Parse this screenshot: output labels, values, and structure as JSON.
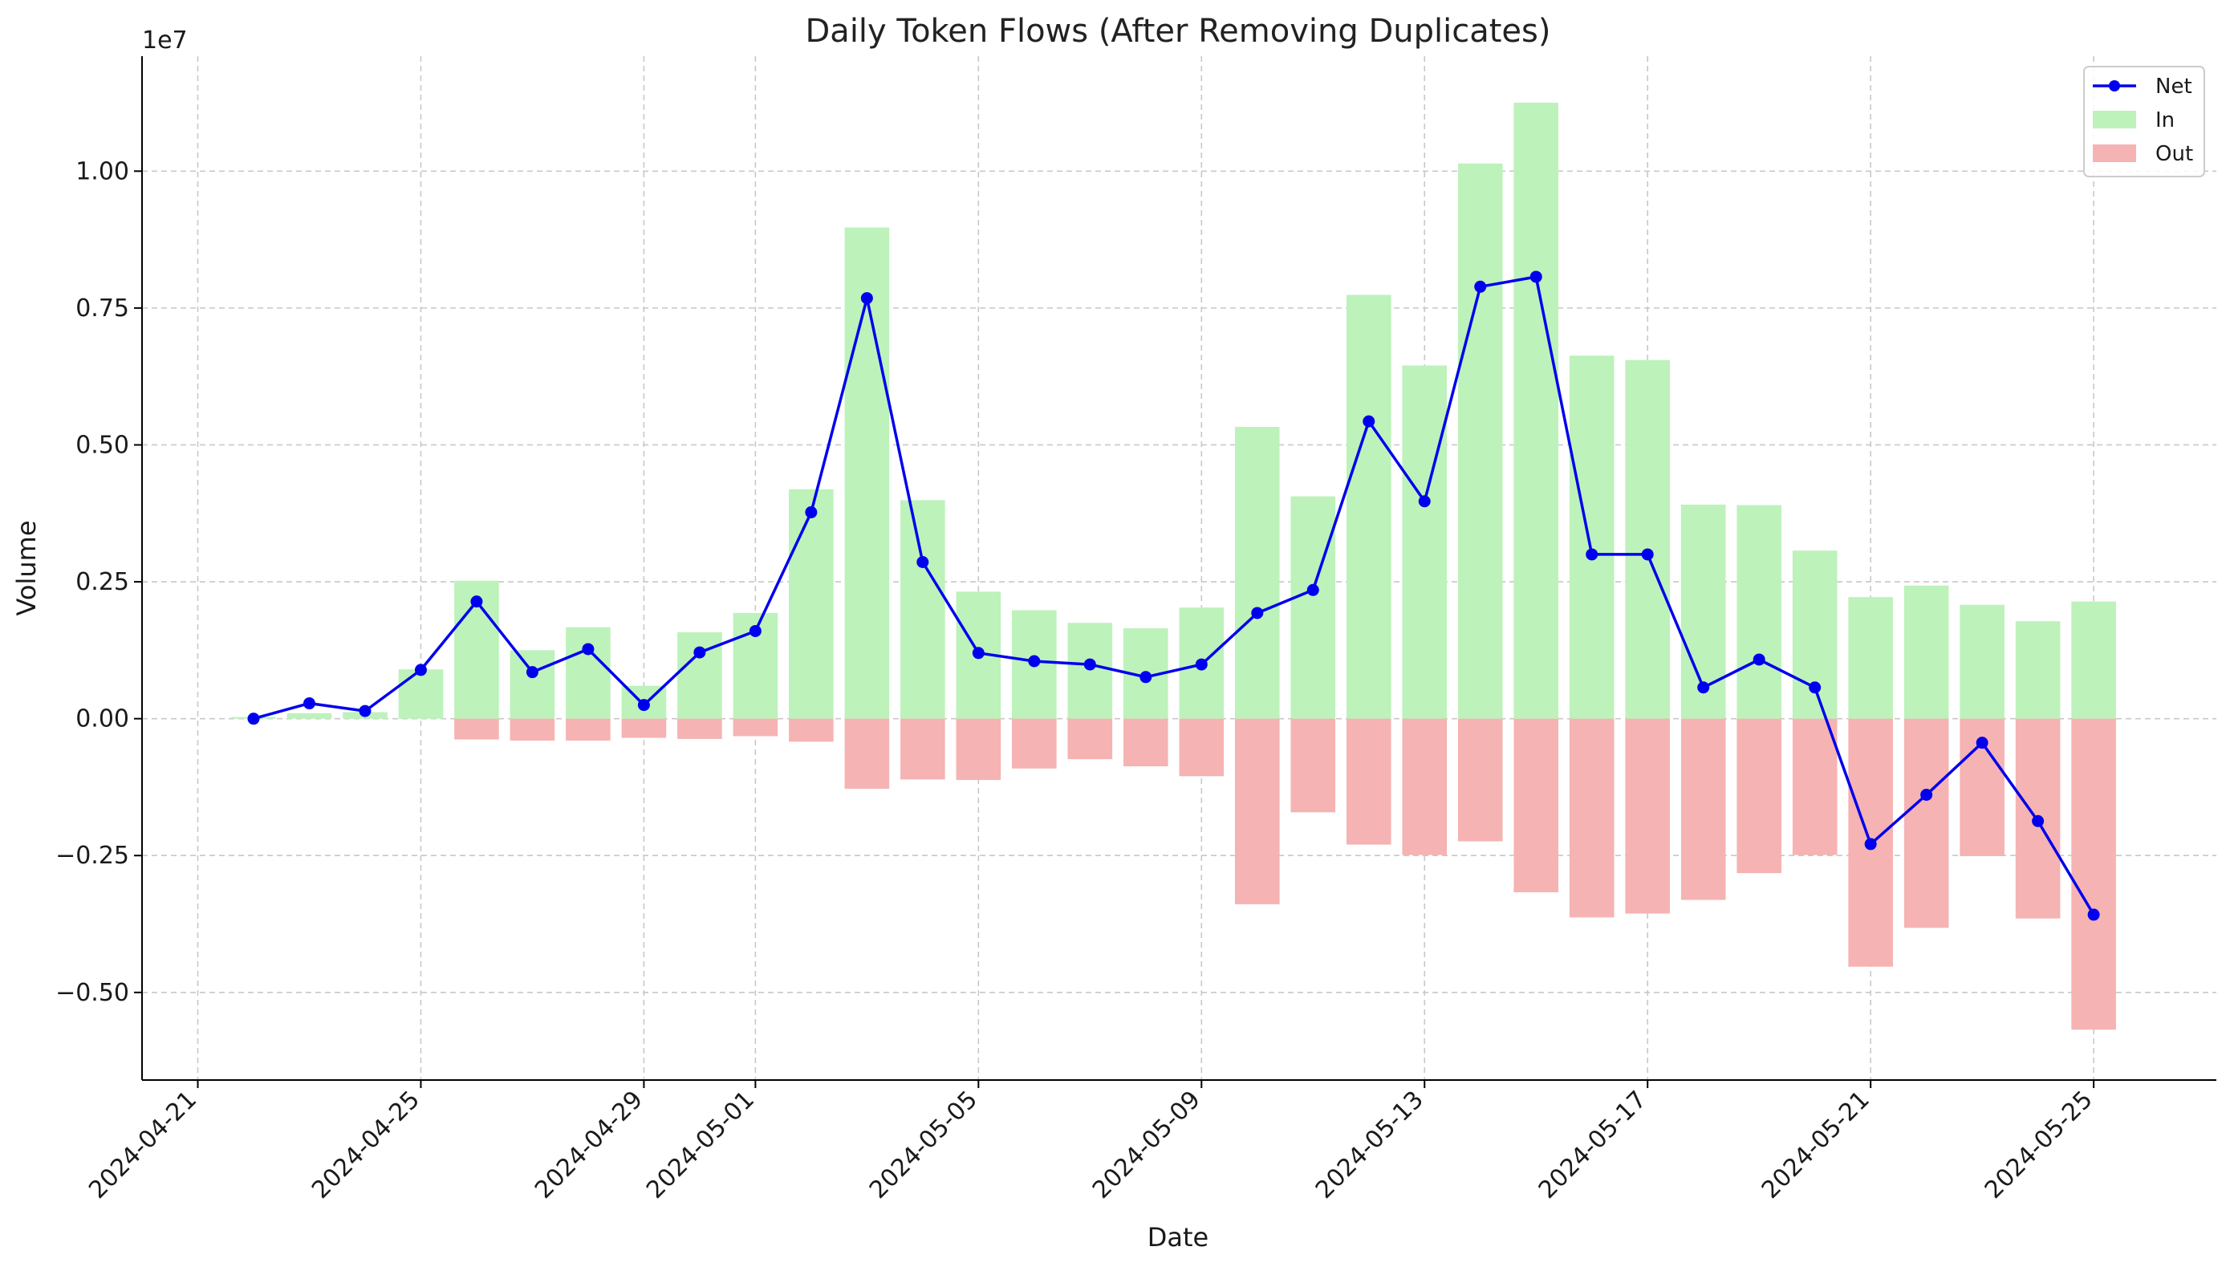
{
  "chart_data": {
    "type": "bar",
    "title": "Daily Token Flows (After Removing Duplicates)",
    "xlabel": "Date",
    "ylabel": "Volume",
    "y_scale_label": "1e7",
    "y_multiplier": 10000000,
    "ylim": [
      -0.66,
      1.21
    ],
    "yticks": [
      -0.5,
      -0.25,
      0,
      0.25,
      0.5,
      0.75,
      1.0
    ],
    "ytick_labels": [
      "−0.50",
      "−0.25",
      "0.00",
      "0.25",
      "0.50",
      "0.75",
      "1.00"
    ],
    "xlim_day_index": [
      -1.0,
      36.2
    ],
    "xticks": [
      {
        "label": "2024-04-21",
        "day": 0
      },
      {
        "label": "2024-04-25",
        "day": 4
      },
      {
        "label": "2024-04-29",
        "day": 8
      },
      {
        "label": "2024-05-01",
        "day": 10
      },
      {
        "label": "2024-05-05",
        "day": 14
      },
      {
        "label": "2024-05-09",
        "day": 18
      },
      {
        "label": "2024-05-13",
        "day": 22
      },
      {
        "label": "2024-05-17",
        "day": 26
      },
      {
        "label": "2024-05-21",
        "day": 30
      },
      {
        "label": "2024-05-25",
        "day": 34
      }
    ],
    "days": [
      1,
      2,
      3,
      4,
      5,
      6,
      7,
      8,
      9,
      10,
      11,
      12,
      13,
      14,
      15,
      16,
      17,
      18,
      19,
      20,
      21,
      22,
      23,
      24,
      25,
      26,
      27,
      28,
      29,
      30,
      31,
      32,
      33,
      34
    ],
    "grid": true,
    "legend_position": "top-right",
    "series": [
      {
        "name": "Net",
        "type": "line",
        "color": "#0000ee",
        "values": [
          0.0,
          0.028,
          0.014,
          0.089,
          0.214,
          0.085,
          0.127,
          0.025,
          0.121,
          0.16,
          0.377,
          0.768,
          0.286,
          0.12,
          0.105,
          0.099,
          0.076,
          0.099,
          0.193,
          0.235,
          0.543,
          0.397,
          0.789,
          0.807,
          0.3,
          0.3,
          0.057,
          0.108,
          0.057,
          -0.229,
          -0.139,
          -0.044,
          -0.187,
          -0.358
        ]
      },
      {
        "name": "In",
        "type": "bar",
        "color": "#bdf2bb",
        "values": [
          0.003,
          0.01,
          0.012,
          0.09,
          0.252,
          0.125,
          0.167,
          0.06,
          0.158,
          0.193,
          0.419,
          0.897,
          0.399,
          0.232,
          0.198,
          0.175,
          0.165,
          0.203,
          0.533,
          0.406,
          0.774,
          0.645,
          1.014,
          1.125,
          0.663,
          0.655,
          0.391,
          0.39,
          0.307,
          0.222,
          0.243,
          0.208,
          0.178,
          0.214
        ]
      },
      {
        "name": "Out",
        "type": "bar",
        "color": "#f5b3b3",
        "values": [
          0.0,
          0.0,
          0.0,
          0.0,
          -0.038,
          -0.04,
          -0.04,
          -0.035,
          -0.037,
          -0.032,
          -0.042,
          -0.128,
          -0.111,
          -0.112,
          -0.091,
          -0.074,
          -0.087,
          -0.105,
          -0.339,
          -0.171,
          -0.23,
          -0.249,
          -0.224,
          -0.317,
          -0.363,
          -0.356,
          -0.331,
          -0.282,
          -0.249,
          -0.453,
          -0.382,
          -0.251,
          -0.365,
          -0.568
        ]
      }
    ]
  }
}
